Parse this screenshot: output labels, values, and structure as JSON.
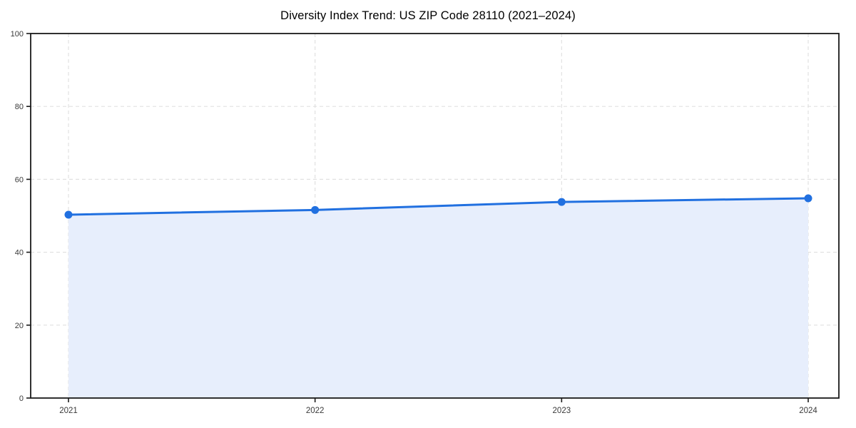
{
  "title": "Diversity Index Trend: US ZIP Code 28110 (2021–2024)",
  "chart_data": {
    "type": "area",
    "title": "Diversity Index Trend: US ZIP Code 28110 (2021–2024)",
    "categories": [
      "2021",
      "2022",
      "2023",
      "2024"
    ],
    "series": [
      {
        "name": "Diversity Index",
        "values": [
          50.3,
          51.6,
          53.8,
          54.8
        ]
      }
    ],
    "xlabel": "",
    "ylabel": "",
    "ylim": [
      0,
      100
    ],
    "yticks": [
      0,
      20,
      40,
      60,
      80,
      100
    ],
    "grid": true,
    "grid_style": "dashed",
    "legend": "none",
    "marker": "circle",
    "colors": {
      "line": "#2170e0",
      "marker": "#2170e0",
      "fill": "#e7eefc",
      "grid": "#e1e1e1",
      "axis": "#1a1a1a",
      "tick_label": "#3a3a3a",
      "background": "#ffffff"
    }
  }
}
